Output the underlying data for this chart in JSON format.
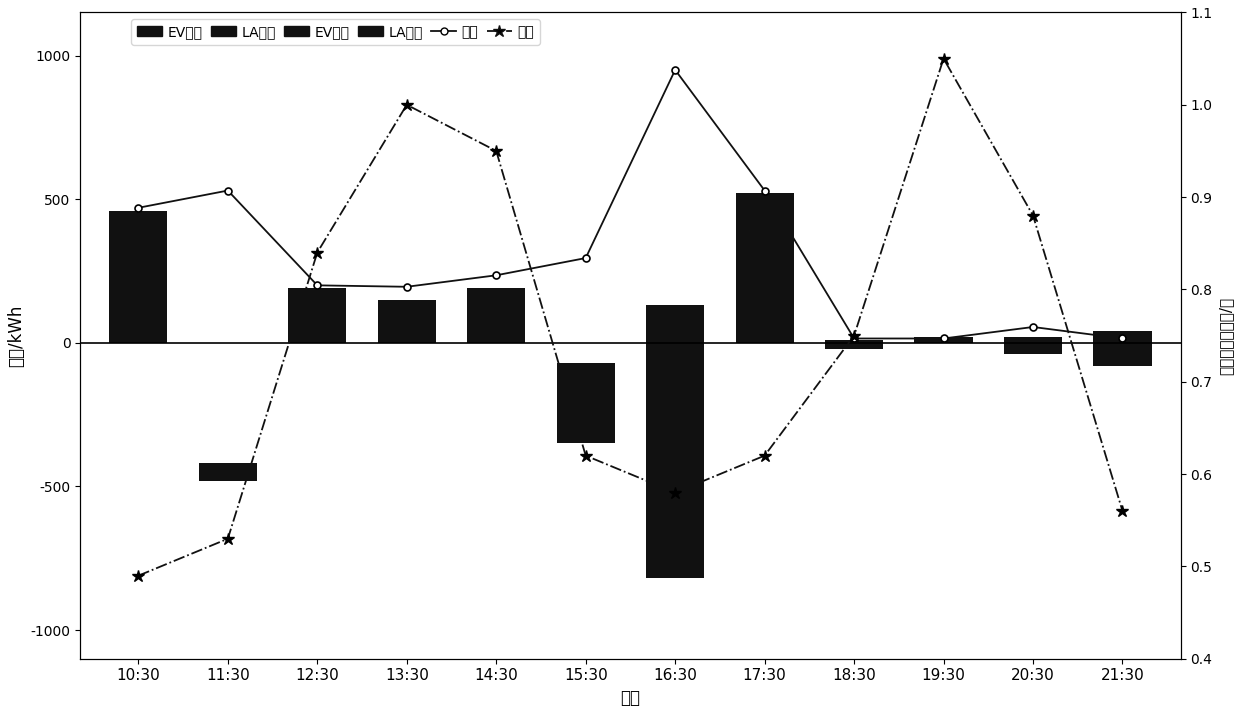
{
  "time_labels": [
    "10:30",
    "11:30",
    "12:30",
    "13:30",
    "14:30",
    "15:30",
    "16:30",
    "17:30",
    "18:30",
    "19:30",
    "20:30",
    "21:30"
  ],
  "bar_values": [
    460,
    60,
    190,
    150,
    190,
    280,
    950,
    520,
    30,
    20,
    60,
    120
  ],
  "bar_bottoms": [
    0,
    -480,
    0,
    0,
    0,
    -350,
    -820,
    0,
    -20,
    0,
    -40,
    -80
  ],
  "load_values": [
    470,
    530,
    200,
    195,
    235,
    295,
    950,
    530,
    15,
    15,
    55,
    15
  ],
  "price_values": [
    0.49,
    0.53,
    0.84,
    1.0,
    0.95,
    0.62,
    0.58,
    0.62,
    0.75,
    1.05,
    0.88,
    0.56
  ],
  "bar_color": "#111111",
  "load_color": "#111111",
  "price_color": "#111111",
  "xlabel": "时间",
  "ylabel_left": "电量/kWh",
  "ylabel_right": "聚合商电商电价/元",
  "ylim_left": [
    -1100,
    1150
  ],
  "ylim_right": [
    0.4,
    1.1
  ],
  "yticks_left": [
    -1000,
    -500,
    0,
    500,
    1000
  ],
  "yticks_right": [
    0.4,
    0.5,
    0.6,
    0.7,
    0.8,
    0.9,
    1.0,
    1.1
  ],
  "legend_labels": [
    "EV充电",
    "LA儲电",
    "EV放电",
    "LA购电",
    "负荷",
    "电价"
  ],
  "bar_width": 0.65,
  "background_color": "#ffffff"
}
